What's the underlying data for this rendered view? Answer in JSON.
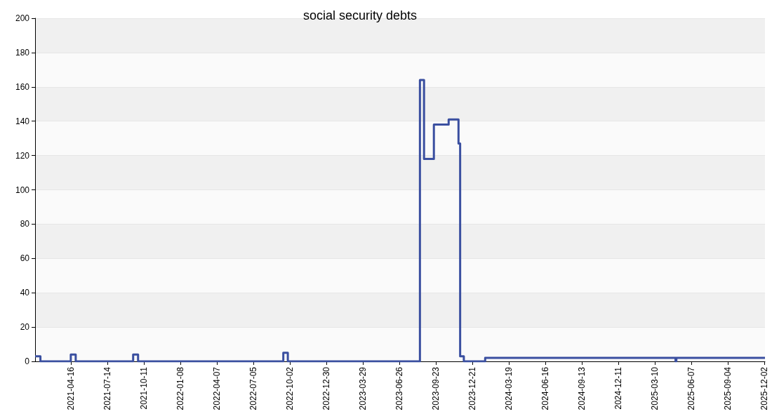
{
  "chart_data": {
    "type": "step",
    "title": "social security debts",
    "x": [
      "2021-01-19",
      "2021-02-01",
      "2021-04-16",
      "2021-04-28",
      "2021-09-15",
      "2021-09-27",
      "2022-09-16",
      "2022-09-27",
      "2023-08-15",
      "2023-08-25",
      "2023-09-18",
      "2023-10-24",
      "2023-11-17",
      "2023-11-21",
      "2023-11-30",
      "2024-01-21",
      "2025-04-29",
      "2025-05-01",
      "2025-12-03"
    ],
    "series": [
      {
        "color": "#3a4fa0",
        "values": [
          3,
          0,
          4,
          0,
          4,
          0,
          5,
          0,
          164,
          118,
          138,
          141,
          127,
          3,
          0,
          2,
          0,
          2,
          2
        ]
      }
    ],
    "xlim": [
      "2021-01-19",
      "2025-12-03"
    ],
    "xticks": [
      "2021-04-16",
      "2021-07-14",
      "2021-10-11",
      "2022-01-08",
      "2022-04-07",
      "2022-07-05",
      "2022-10-02",
      "2022-12-30",
      "2023-03-29",
      "2023-06-26",
      "2023-09-23",
      "2023-12-21",
      "2024-03-19",
      "2024-06-16",
      "2024-09-13",
      "2024-12-11",
      "2025-03-10",
      "2025-06-07",
      "2025-09-04",
      "2025-12-02"
    ],
    "ylim": [
      0,
      200
    ],
    "yticks": [
      0,
      20,
      40,
      60,
      80,
      100,
      120,
      140,
      160,
      180,
      200
    ],
    "grid": "y",
    "marker": "none"
  }
}
